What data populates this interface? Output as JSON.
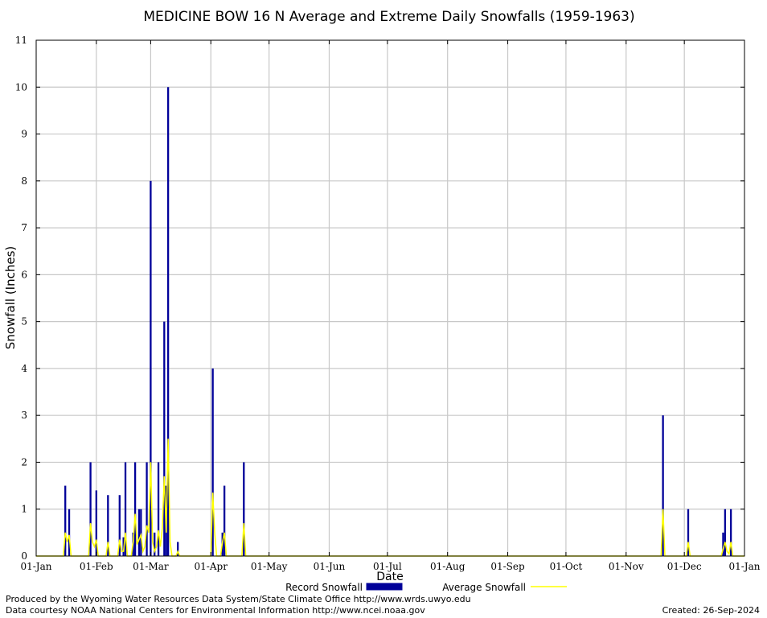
{
  "chart_data": {
    "type": "bar",
    "title": "MEDICINE BOW 16 N Average and Extreme Daily Snowfalls (1959-1963)",
    "xlabel": "Date",
    "ylabel": "Snowfall (Inches)",
    "ylim": [
      0,
      11
    ],
    "yticks": [
      "0",
      "1",
      "2",
      "3",
      "4",
      "5",
      "6",
      "7",
      "8",
      "9",
      "10",
      "11"
    ],
    "xlim": [
      1,
      366
    ],
    "xticks": [
      {
        "label": "01-Jan",
        "day": 1
      },
      {
        "label": "01-Feb",
        "day": 32
      },
      {
        "label": "01-Mar",
        "day": 60
      },
      {
        "label": "01-Apr",
        "day": 91
      },
      {
        "label": "01-May",
        "day": 121
      },
      {
        "label": "01-Jun",
        "day": 152
      },
      {
        "label": "01-Jul",
        "day": 182
      },
      {
        "label": "01-Aug",
        "day": 213
      },
      {
        "label": "01-Sep",
        "day": 244
      },
      {
        "label": "01-Oct",
        "day": 274
      },
      {
        "label": "01-Nov",
        "day": 305
      },
      {
        "label": "01-Dec",
        "day": 335
      },
      {
        "label": "01-Jan",
        "day": 366
      }
    ],
    "grid": true,
    "legend_position": "bottom",
    "series": [
      {
        "name": "Record Snowfall",
        "style": "bar",
        "color": "#000099",
        "points": [
          [
            16,
            1.5
          ],
          [
            18,
            1.0
          ],
          [
            29,
            2.0
          ],
          [
            32,
            1.4
          ],
          [
            38,
            1.3
          ],
          [
            44,
            1.3
          ],
          [
            46,
            0.4
          ],
          [
            47,
            2.0
          ],
          [
            51,
            0.5
          ],
          [
            52,
            2.0
          ],
          [
            54,
            1.0
          ],
          [
            55,
            1.0
          ],
          [
            58,
            2.0
          ],
          [
            60,
            8.0
          ],
          [
            62,
            0.5
          ],
          [
            64,
            2.0
          ],
          [
            67,
            5.0
          ],
          [
            68,
            1.5
          ],
          [
            69,
            10.0
          ],
          [
            74,
            0.3
          ],
          [
            92,
            4.0
          ],
          [
            97,
            0.5
          ],
          [
            98,
            1.5
          ],
          [
            108,
            2.0
          ],
          [
            324,
            3.0
          ],
          [
            337,
            1.0
          ],
          [
            355,
            0.5
          ],
          [
            356,
            1.0
          ],
          [
            359,
            1.0
          ]
        ]
      },
      {
        "name": "Average Snowfall",
        "style": "line",
        "color": "#ffff00",
        "points": [
          [
            15,
            0
          ],
          [
            16,
            0.5
          ],
          [
            17,
            0.3
          ],
          [
            18,
            0.45
          ],
          [
            19,
            0
          ],
          [
            28,
            0
          ],
          [
            29,
            0.7
          ],
          [
            30,
            0.3
          ],
          [
            31,
            0.2
          ],
          [
            32,
            0.35
          ],
          [
            33,
            0
          ],
          [
            37,
            0
          ],
          [
            38,
            0.3
          ],
          [
            39,
            0
          ],
          [
            43,
            0
          ],
          [
            44,
            0.35
          ],
          [
            45,
            0.1
          ],
          [
            46,
            0.1
          ],
          [
            47,
            0.5
          ],
          [
            48,
            0
          ],
          [
            50,
            0
          ],
          [
            51,
            0.3
          ],
          [
            52,
            0.9
          ],
          [
            53,
            0.25
          ],
          [
            54,
            0.35
          ],
          [
            55,
            0.45
          ],
          [
            56,
            0.1
          ],
          [
            57,
            0.2
          ],
          [
            58,
            0.65
          ],
          [
            59,
            0.5
          ],
          [
            60,
            2.0
          ],
          [
            61,
            0.3
          ],
          [
            62,
            0.1
          ],
          [
            63,
            0.2
          ],
          [
            64,
            0.55
          ],
          [
            65,
            0.2
          ],
          [
            66,
            0.6
          ],
          [
            67,
            1.7
          ],
          [
            68,
            0.5
          ],
          [
            69,
            2.5
          ],
          [
            70,
            0.3
          ],
          [
            71,
            0
          ],
          [
            73,
            0
          ],
          [
            74,
            0.1
          ],
          [
            75,
            0
          ],
          [
            91,
            0
          ],
          [
            92,
            1.35
          ],
          [
            93,
            0.5
          ],
          [
            94,
            0
          ],
          [
            96,
            0
          ],
          [
            97,
            0.3
          ],
          [
            98,
            0.5
          ],
          [
            99,
            0
          ],
          [
            107,
            0
          ],
          [
            108,
            0.7
          ],
          [
            109,
            0
          ],
          [
            323,
            0
          ],
          [
            324,
            1.0
          ],
          [
            325,
            0
          ],
          [
            336,
            0
          ],
          [
            337,
            0.3
          ],
          [
            338,
            0
          ],
          [
            354,
            0
          ],
          [
            355,
            0.15
          ],
          [
            356,
            0.3
          ],
          [
            357,
            0.1
          ],
          [
            358,
            0.05
          ],
          [
            359,
            0.3
          ],
          [
            360,
            0
          ]
        ]
      }
    ]
  },
  "footer": {
    "credit_1": "Produced by the Wyoming Water Resources Data System/State Climate Office http://www.wrds.uwyo.edu",
    "credit_2": "Data courtesy NOAA National Centers for Environmental Information http://www.ncei.noaa.gov",
    "created": "Created:  26-Sep-2024"
  }
}
